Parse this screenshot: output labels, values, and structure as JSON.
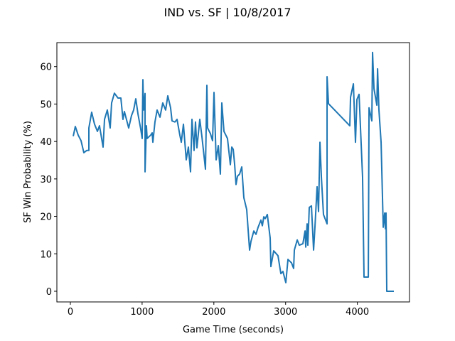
{
  "chart_data": {
    "type": "line",
    "title": "IND vs. SF | 10/8/2017",
    "x_label": "Game Time (seconds)",
    "y_label": "SF Win Probability (%)",
    "color": "#1f77b4",
    "xlim": [
      -188,
      4727
    ],
    "ylim": [
      -2.85,
      66.4
    ],
    "xticks": [
      0,
      1000,
      2000,
      3000,
      4000
    ],
    "yticks": [
      0,
      10,
      20,
      30,
      40,
      50,
      60
    ],
    "x": [
      40,
      69,
      109,
      149,
      188,
      228,
      258,
      258,
      297,
      337,
      377,
      406,
      456,
      476,
      515,
      555,
      575,
      614,
      664,
      704,
      733,
      753,
      813,
      852,
      882,
      912,
      942,
      981,
      1001,
      1011,
      1021,
      1041,
      1041,
      1060,
      1070,
      1120,
      1140,
      1150,
      1179,
      1209,
      1249,
      1288,
      1328,
      1358,
      1397,
      1417,
      1457,
      1487,
      1526,
      1546,
      1576,
      1615,
      1645,
      1675,
      1695,
      1724,
      1744,
      1764,
      1804,
      1833,
      1883,
      1903,
      1913,
      1952,
      1982,
      2002,
      2032,
      2062,
      2091,
      2111,
      2141,
      2190,
      2230,
      2250,
      2270,
      2290,
      2309,
      2329,
      2359,
      2389,
      2418,
      2458,
      2498,
      2517,
      2557,
      2587,
      2617,
      2656,
      2676,
      2696,
      2716,
      2745,
      2785,
      2795,
      2834,
      2894,
      2934,
      2963,
      3003,
      3033,
      3082,
      3112,
      3122,
      3162,
      3191,
      3241,
      3271,
      3281,
      3300,
      3310,
      3330,
      3360,
      3390,
      3409,
      3439,
      3459,
      3479,
      3499,
      3528,
      3578,
      3578,
      3598,
      3895,
      3905,
      3945,
      3974,
      3994,
      4024,
      4073,
      4093,
      4153,
      4163,
      4202,
      4212,
      4232,
      4272,
      4282,
      4301,
      4331,
      4361,
      4381,
      4391,
      4400,
      4410,
      4509
    ],
    "values": [
      41.4,
      44.0,
      41.7,
      40.2,
      37.0,
      37.6,
      37.6,
      43.6,
      47.8,
      44.6,
      42.7,
      44.2,
      38.5,
      45.9,
      48.4,
      43.6,
      50.3,
      52.9,
      51.6,
      51.6,
      45.9,
      48.0,
      43.6,
      46.9,
      48.4,
      51.4,
      47.4,
      43.3,
      40.8,
      56.5,
      48.4,
      52.8,
      31.9,
      44.2,
      40.8,
      41.7,
      42.3,
      39.8,
      45.2,
      48.4,
      46.5,
      50.3,
      48.4,
      52.2,
      49.0,
      45.5,
      45.2,
      45.9,
      41.7,
      39.8,
      44.6,
      35.1,
      38.5,
      31.9,
      45.9,
      37.6,
      45.2,
      38.3,
      45.9,
      41.4,
      32.6,
      55.0,
      43.6,
      42.1,
      40.2,
      53.1,
      35.1,
      38.9,
      31.3,
      50.3,
      42.7,
      40.8,
      33.8,
      38.5,
      37.9,
      33.8,
      28.5,
      30.7,
      31.3,
      33.2,
      25.0,
      21.8,
      11.0,
      13.3,
      16.1,
      15.2,
      17.1,
      19.0,
      17.5,
      19.9,
      19.4,
      20.5,
      14.2,
      6.6,
      10.8,
      9.5,
      4.7,
      5.3,
      2.3,
      8.5,
      7.6,
      6.1,
      11.0,
      13.7,
      12.3,
      12.7,
      16.1,
      11.8,
      18.0,
      12.3,
      22.4,
      22.8,
      11.0,
      17.1,
      27.9,
      21.3,
      39.8,
      30.4,
      20.5,
      18.0,
      57.3,
      50.1,
      44.2,
      51.8,
      55.4,
      39.8,
      51.2,
      52.6,
      30.4,
      3.8,
      3.8,
      49.0,
      45.5,
      63.8,
      54.1,
      49.7,
      59.4,
      48.4,
      39.8,
      17.1,
      20.9,
      16.7,
      20.9,
      0,
      0
    ]
  }
}
